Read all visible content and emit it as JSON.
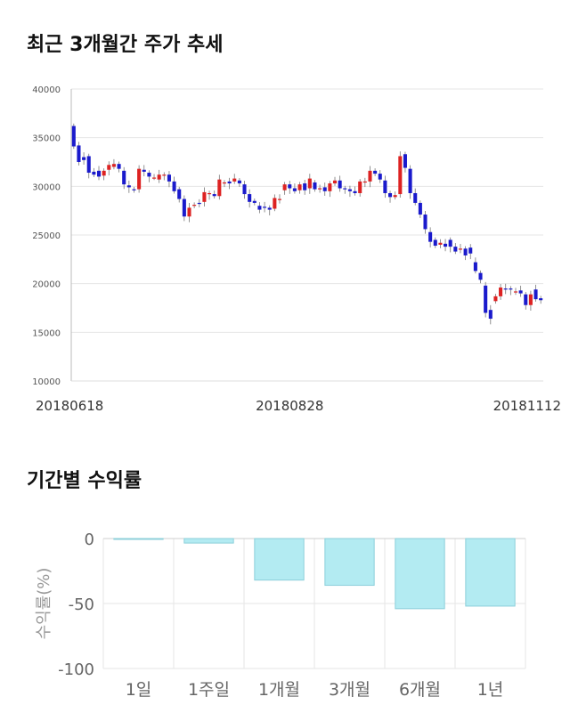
{
  "sections": {
    "price_title": "최근 3개월간 주가 추세",
    "return_title": "기간별 수익률"
  },
  "colors": {
    "up": "#dd2222",
    "down": "#1a1acc",
    "bar": "#b3ebf2",
    "bar_edge": "#8ccfda",
    "grid": "#e6e6e6"
  },
  "chart_data": [
    {
      "type": "candlestick",
      "title": "최근 3개월간 주가 추세",
      "ylim": [
        10000,
        40000
      ],
      "yticks": [
        10000,
        15000,
        20000,
        25000,
        30000,
        35000,
        40000
      ],
      "xtick_labels": [
        {
          "index": 0,
          "label": "20180618"
        },
        {
          "index": 43,
          "label": "20180828"
        },
        {
          "index": 90,
          "label": "20181112"
        }
      ],
      "grid": true,
      "candles": [
        [
          36200,
          34100
        ],
        [
          34200,
          32500
        ],
        [
          33000,
          32700
        ],
        [
          33100,
          31400
        ],
        [
          31500,
          31200
        ],
        [
          31600,
          31000
        ],
        [
          31100,
          31600
        ],
        [
          31700,
          32200
        ],
        [
          32000,
          32300
        ],
        [
          32300,
          31800
        ],
        [
          31600,
          30200
        ],
        [
          30100,
          29900
        ],
        [
          29700,
          29600
        ],
        [
          29700,
          31800
        ],
        [
          31700,
          31500
        ],
        [
          31400,
          31000
        ],
        [
          30900,
          30900
        ],
        [
          30700,
          31200
        ],
        [
          31100,
          31200
        ],
        [
          31200,
          30500
        ],
        [
          30500,
          29500
        ],
        [
          29700,
          28700
        ],
        [
          28700,
          26900
        ],
        [
          26900,
          27800
        ],
        [
          28000,
          28100
        ],
        [
          28300,
          28200
        ],
        [
          28400,
          29400
        ],
        [
          29200,
          29300
        ],
        [
          29200,
          29000
        ],
        [
          29000,
          30700
        ],
        [
          30400,
          30400
        ],
        [
          30500,
          30300
        ],
        [
          30500,
          30800
        ],
        [
          30600,
          30300
        ],
        [
          30200,
          29200
        ],
        [
          29200,
          28400
        ],
        [
          28500,
          28300
        ],
        [
          28000,
          27600
        ],
        [
          27900,
          27800
        ],
        [
          27800,
          27600
        ],
        [
          27700,
          28800
        ],
        [
          28600,
          28700
        ],
        [
          29600,
          30200
        ],
        [
          30200,
          29800
        ],
        [
          29800,
          29500
        ],
        [
          29600,
          30200
        ],
        [
          30300,
          29600
        ],
        [
          29800,
          30800
        ],
        [
          30400,
          29700
        ],
        [
          29700,
          29800
        ],
        [
          29900,
          29500
        ],
        [
          29500,
          30300
        ],
        [
          30300,
          30600
        ],
        [
          30600,
          29800
        ],
        [
          29800,
          29700
        ],
        [
          29700,
          29500
        ],
        [
          29500,
          29300
        ],
        [
          29300,
          30500
        ],
        [
          30400,
          30500
        ],
        [
          30500,
          31600
        ],
        [
          31600,
          31300
        ],
        [
          31300,
          30700
        ],
        [
          30600,
          29300
        ],
        [
          29300,
          28900
        ],
        [
          28900,
          29100
        ],
        [
          29200,
          33100
        ],
        [
          33300,
          31900
        ],
        [
          31800,
          29300
        ],
        [
          29300,
          28300
        ],
        [
          28300,
          27100
        ],
        [
          27100,
          25600
        ],
        [
          25300,
          24300
        ],
        [
          24500,
          23900
        ],
        [
          24000,
          24200
        ],
        [
          24100,
          23800
        ],
        [
          24500,
          23800
        ],
        [
          23800,
          23300
        ],
        [
          23500,
          23600
        ],
        [
          23600,
          22900
        ],
        [
          23700,
          23100
        ],
        [
          22200,
          21300
        ],
        [
          21100,
          20400
        ],
        [
          19800,
          17000
        ],
        [
          17300,
          16400
        ],
        [
          18200,
          18700
        ],
        [
          18700,
          19600
        ],
        [
          19500,
          19400
        ],
        [
          19500,
          19400
        ],
        [
          19100,
          19200
        ],
        [
          19300,
          19000
        ],
        [
          18900,
          17800
        ],
        [
          17800,
          18900
        ],
        [
          19400,
          18400
        ],
        [
          18500,
          18300
        ]
      ]
    },
    {
      "type": "bar",
      "title": "기간별 수익률",
      "categories": [
        "1일",
        "1주일",
        "1개월",
        "3개월",
        "6개월",
        "1년"
      ],
      "values": [
        -0.2,
        -3.5,
        -32,
        -36,
        -54,
        -52
      ],
      "ylabel": "수익률(%)",
      "ylim": [
        -100,
        0
      ],
      "yticks": [
        0,
        -50,
        -100
      ],
      "grid": true
    }
  ]
}
